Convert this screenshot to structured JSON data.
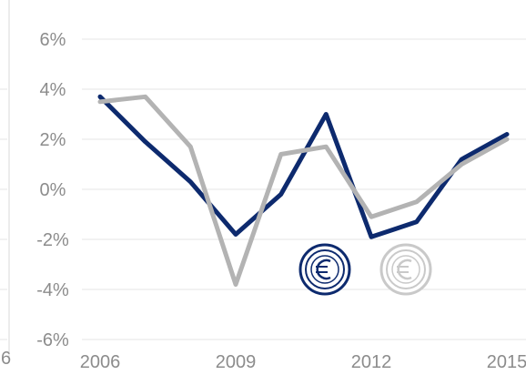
{
  "chart_data": {
    "type": "line",
    "title": "",
    "xlabel": "",
    "ylabel": "",
    "x": [
      2006,
      2007,
      2008,
      2009,
      2010,
      2011,
      2012,
      2013,
      2014,
      2015
    ],
    "x_tick_labels": [
      "2006",
      "2009",
      "2012",
      "2015"
    ],
    "y_tick_labels": [
      "6%",
      "4%",
      "2%",
      "0%",
      "-2%",
      "-4%",
      "-6%"
    ],
    "y_ticks": [
      6,
      4,
      2,
      0,
      -2,
      -4,
      -6
    ],
    "ylim": [
      -6,
      6
    ],
    "grid": true,
    "legend": "icons",
    "series": [
      {
        "color": "#0d2a6e",
        "values": [
          3.7,
          1.9,
          0.3,
          -1.8,
          -0.2,
          3.0,
          -1.9,
          -1.3,
          1.2,
          2.2
        ]
      },
      {
        "color": "#b3b3b3",
        "values": [
          3.5,
          3.7,
          1.7,
          -3.8,
          1.4,
          1.7,
          -1.1,
          -0.5,
          1.0,
          2.0
        ]
      }
    ],
    "clipped_left_labels": [
      "6"
    ],
    "legend_icons": [
      {
        "icon": "euro-coin-icon",
        "color": "#0d2a6e"
      },
      {
        "icon": "euro-coin-icon",
        "color": "#c9c9c9"
      }
    ]
  }
}
